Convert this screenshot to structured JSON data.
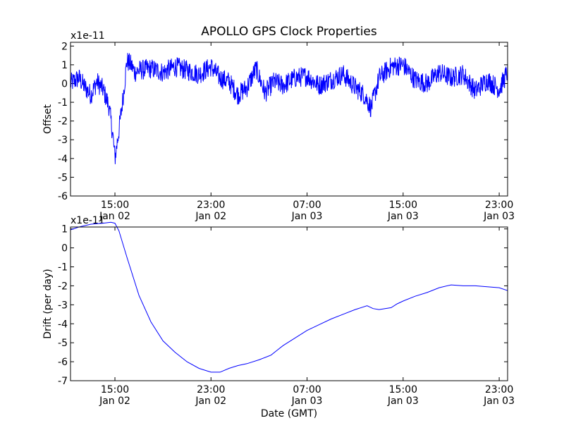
{
  "chart_data": [
    {
      "type": "line",
      "title": "APOLLO GPS Clock Properties",
      "ylabel": "Offset",
      "xlabel": "",
      "scale_label": "x1e-11",
      "y_ticks": [
        2,
        1,
        0,
        -1,
        -2,
        -3,
        -4,
        -5,
        -6
      ],
      "y_tick_labels": [
        "2",
        "1",
        "0",
        "-1",
        "-2",
        "-3",
        "-4",
        "-5",
        "-6"
      ],
      "ylim": [
        -6,
        2.2
      ],
      "x_ticks": [
        "2-Jan 15:00",
        "2-Jan 23:00",
        "3-Jan 07:00",
        "3-Jan 15:00",
        "3-Jan 23:00"
      ],
      "x_tick_labels": [
        [
          "15:00",
          "Jan 02"
        ],
        [
          "23:00",
          "Jan 02"
        ],
        [
          "07:00",
          "Jan 03"
        ],
        [
          "15:00",
          "Jan 03"
        ],
        [
          "23:00",
          "Jan 03"
        ]
      ],
      "xlim": [
        "2-Jan 11:18",
        "3-Jan 23:42"
      ],
      "grid": false,
      "color": "#0000ff",
      "series": [
        {
          "x": [
            "2-Jan 11:18",
            "2-Jan 12:00",
            "2-Jan 12:30",
            "2-Jan 13:00",
            "2-Jan 13:30",
            "2-Jan 14:00",
            "2-Jan 14:30",
            "2-Jan 14:50",
            "2-Jan 15:00",
            "2-Jan 15:20",
            "2-Jan 15:40",
            "2-Jan 16:00",
            "2-Jan 16:20",
            "2-Jan 16:40",
            "2-Jan 17:00",
            "2-Jan 18:00",
            "2-Jan 19:00",
            "2-Jan 20:00",
            "2-Jan 21:00",
            "2-Jan 22:00",
            "2-Jan 23:00",
            "2-Jan 23:45",
            "3-Jan 00:30",
            "3-Jan 01:15",
            "3-Jan 02:00",
            "3-Jan 02:45",
            "3-Jan 03:30",
            "3-Jan 04:15",
            "3-Jan 05:00",
            "3-Jan 06:00",
            "3-Jan 07:00",
            "3-Jan 08:00",
            "3-Jan 09:00",
            "3-Jan 10:00",
            "3-Jan 11:00",
            "3-Jan 11:45",
            "3-Jan 12:20",
            "3-Jan 13:00",
            "3-Jan 14:00",
            "3-Jan 15:00",
            "3-Jan 16:00",
            "3-Jan 17:00",
            "3-Jan 18:00",
            "3-Jan 19:00",
            "3-Jan 20:00",
            "3-Jan 21:00",
            "3-Jan 22:00",
            "3-Jan 23:00",
            "3-Jan 23:42"
          ],
          "values": [
            0.0,
            0.3,
            -0.2,
            -0.6,
            0.1,
            -0.3,
            -1.2,
            -2.8,
            -4.0,
            -2.5,
            -0.8,
            1.2,
            1.0,
            0.6,
            0.7,
            0.8,
            0.6,
            0.9,
            0.7,
            0.5,
            0.9,
            0.3,
            0.1,
            -0.6,
            -0.2,
            0.8,
            -0.5,
            0.1,
            -0.1,
            0.3,
            0.4,
            -0.1,
            0.2,
            0.5,
            -0.2,
            -0.6,
            -1.3,
            0.3,
            0.9,
            1.0,
            0.2,
            0.0,
            0.6,
            0.3,
            0.5,
            -0.4,
            0.2,
            -0.3,
            0.6
          ]
        }
      ]
    },
    {
      "type": "line",
      "title": "",
      "ylabel": "Drift (per day)",
      "xlabel": "Date (GMT)",
      "scale_label": "x1e-11",
      "y_ticks": [
        1,
        0,
        -1,
        -2,
        -3,
        -4,
        -5,
        -6,
        -7
      ],
      "y_tick_labels": [
        "1",
        "0",
        "-1",
        "-2",
        "-3",
        "-4",
        "-5",
        "-6",
        "-7"
      ],
      "ylim": [
        -7,
        1.1
      ],
      "x_ticks": [
        "2-Jan 15:00",
        "2-Jan 23:00",
        "3-Jan 07:00",
        "3-Jan 15:00",
        "3-Jan 23:00"
      ],
      "x_tick_labels": [
        [
          "15:00",
          "Jan 02"
        ],
        [
          "23:00",
          "Jan 02"
        ],
        [
          "07:00",
          "Jan 03"
        ],
        [
          "15:00",
          "Jan 03"
        ],
        [
          "23:00",
          "Jan 03"
        ]
      ],
      "xlim": [
        "2-Jan 11:18",
        "3-Jan 23:42"
      ],
      "grid": false,
      "color": "#0000ff",
      "series": [
        {
          "x": [
            "2-Jan 11:18",
            "2-Jan 12:00",
            "2-Jan 13:00",
            "2-Jan 14:00",
            "2-Jan 14:40",
            "2-Jan 15:00",
            "2-Jan 15:20",
            "2-Jan 16:00",
            "2-Jan 17:00",
            "2-Jan 18:00",
            "2-Jan 19:00",
            "2-Jan 20:00",
            "2-Jan 21:00",
            "2-Jan 22:00",
            "2-Jan 23:00",
            "2-Jan 23:45",
            "3-Jan 00:30",
            "3-Jan 01:15",
            "3-Jan 02:00",
            "3-Jan 03:00",
            "3-Jan 04:00",
            "3-Jan 04:30",
            "3-Jan 05:00",
            "3-Jan 06:00",
            "3-Jan 07:00",
            "3-Jan 08:00",
            "3-Jan 09:00",
            "3-Jan 10:00",
            "3-Jan 11:00",
            "3-Jan 12:00",
            "3-Jan 12:30",
            "3-Jan 13:00",
            "3-Jan 14:00",
            "3-Jan 14:30",
            "3-Jan 15:00",
            "3-Jan 16:00",
            "3-Jan 17:00",
            "3-Jan 18:00",
            "3-Jan 19:00",
            "3-Jan 20:00",
            "3-Jan 21:00",
            "3-Jan 22:00",
            "3-Jan 23:00",
            "3-Jan 23:42"
          ],
          "values": [
            0.95,
            1.1,
            1.25,
            1.3,
            1.35,
            1.3,
            0.9,
            -0.5,
            -2.5,
            -3.9,
            -4.9,
            -5.5,
            -6.0,
            -6.35,
            -6.55,
            -6.55,
            -6.35,
            -6.2,
            -6.1,
            -5.9,
            -5.65,
            -5.4,
            -5.15,
            -4.75,
            -4.35,
            -4.05,
            -3.75,
            -3.5,
            -3.25,
            -3.05,
            -3.2,
            -3.25,
            -3.15,
            -2.95,
            -2.8,
            -2.55,
            -2.35,
            -2.1,
            -1.95,
            -2.0,
            -2.0,
            -2.05,
            -2.1,
            -2.25
          ]
        }
      ]
    }
  ]
}
